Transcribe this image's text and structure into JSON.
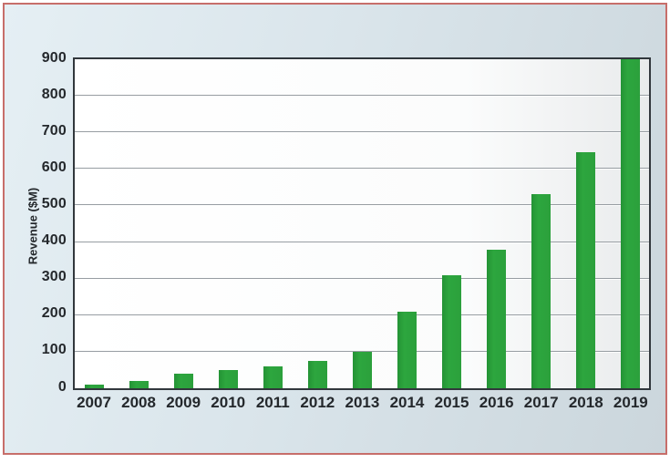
{
  "chart_data": {
    "type": "bar",
    "title": "",
    "categories": [
      "2007",
      "2008",
      "2009",
      "2010",
      "2011",
      "2012",
      "2013",
      "2014",
      "2015",
      "2016",
      "2017",
      "2018",
      "2019"
    ],
    "values": [
      10,
      20,
      40,
      50,
      60,
      75,
      100,
      210,
      310,
      380,
      530,
      645,
      900
    ],
    "xlabel": "",
    "ylabel": "Revenue ($M)",
    "ylim": [
      0,
      900
    ],
    "yticks": [
      0,
      100,
      200,
      300,
      400,
      500,
      600,
      700,
      800,
      900
    ],
    "grid": "horizontal-major",
    "legend_position": "none",
    "bar_color": "#2BA03C"
  },
  "colors": {
    "outer_background": "#FFFFFF",
    "frame_border": "#C76E6A",
    "panel_gradient_start": "#E5EFF4",
    "panel_gradient_end": "#CBD6DC",
    "plot_border": "#31373C",
    "plot_gradient_start": "#FFFFFF",
    "plot_gradient_end": "#E9EBEC",
    "gridline": "#979DA2",
    "bar": "#2BA03C",
    "bar_edge": "#249335",
    "text": "#24282C"
  }
}
